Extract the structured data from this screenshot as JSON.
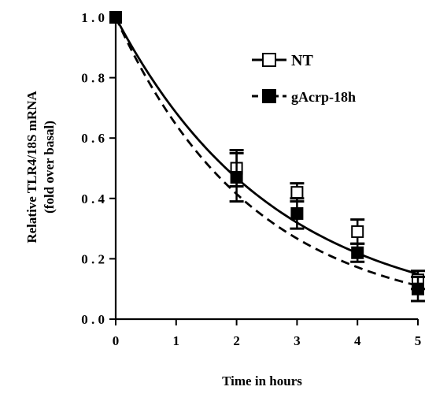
{
  "chart_data": {
    "type": "line",
    "title": "",
    "xlabel": "Time in hours",
    "ylabel": "Relative TLR4/18S mRNA",
    "ylabel_line2": "(fold over basal)",
    "xlim": [
      0,
      5
    ],
    "ylim": [
      0,
      1.0
    ],
    "x_ticks": [
      0,
      1,
      2,
      3,
      4,
      5
    ],
    "x_tick_labels": [
      "0",
      "1",
      "2",
      "3",
      "4",
      "5"
    ],
    "y_ticks": [
      0,
      0.2,
      0.4,
      0.6,
      0.8,
      1.0
    ],
    "y_tick_labels": [
      "0 . 0",
      "0 . 2",
      "0 . 4",
      "0 . 6",
      "0 . 8",
      "1 . 0"
    ],
    "grid": false,
    "legend_position": "top-right",
    "series": [
      {
        "name": "NT",
        "marker": "open-square",
        "line_style": "solid",
        "color": "#000000",
        "x": [
          0,
          2,
          3,
          4,
          5
        ],
        "y": [
          1.0,
          0.5,
          0.42,
          0.29,
          0.13
        ],
        "error": [
          0.0,
          0.06,
          0.03,
          0.04,
          0.03
        ],
        "fit_rate": 0.38
      },
      {
        "name": "gAcrp-18h",
        "marker": "filled-square",
        "line_style": "dashed",
        "color": "#000000",
        "x": [
          0,
          2,
          3,
          4,
          5
        ],
        "y": [
          1.0,
          0.47,
          0.35,
          0.22,
          0.1
        ],
        "error": [
          0.0,
          0.08,
          0.05,
          0.03,
          0.04
        ],
        "fit_rate": 0.44
      }
    ]
  }
}
